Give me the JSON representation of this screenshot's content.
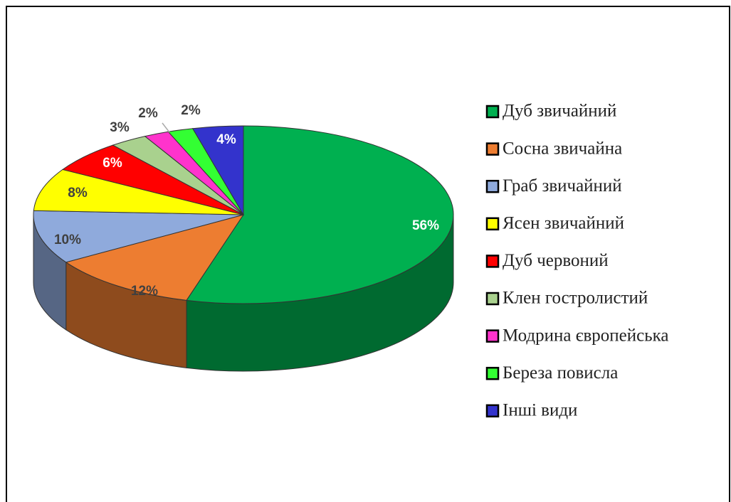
{
  "chart_data": {
    "type": "pie",
    "categories": [
      "Дуб звичайний",
      "Сосна звичайна",
      "Граб звичайний",
      "Ясен звичайний",
      "Дуб червоний",
      "Клен гостролистий",
      "Модрина європейська",
      "Береза повисла",
      "Інші види"
    ],
    "values": [
      56,
      12,
      10,
      8,
      6,
      3,
      2,
      2,
      4
    ],
    "value_labels": [
      "56%",
      "12%",
      "10%",
      "8%",
      "6%",
      "3%",
      "2%",
      "2%",
      "4%"
    ],
    "colors": [
      "#00b050",
      "#ed7d31",
      "#8faadc",
      "#ffff00",
      "#ff0000",
      "#a9d18e",
      "#ff33cc",
      "#33ff33",
      "#3333cc"
    ],
    "legend": "right"
  }
}
